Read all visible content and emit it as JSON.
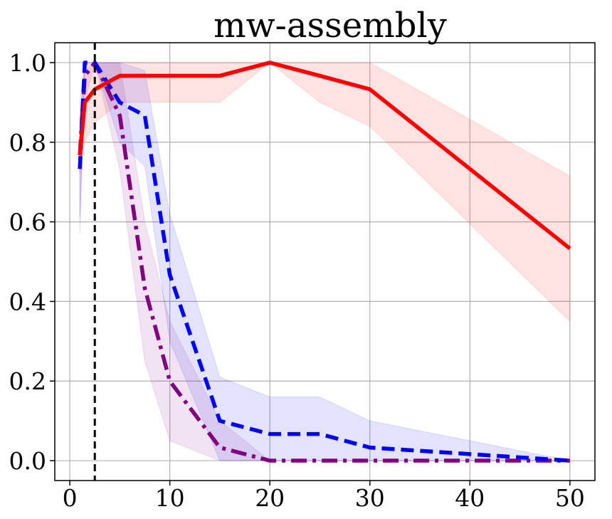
{
  "chart_data": {
    "type": "line",
    "title": "mw-assembly",
    "xlabel": "",
    "ylabel": "",
    "xlim": [
      -1.5,
      52.5
    ],
    "ylim": [
      -0.05,
      1.05
    ],
    "xticks": [
      0,
      10,
      20,
      30,
      40,
      50
    ],
    "yticks": [
      0.0,
      0.2,
      0.4,
      0.6,
      0.8,
      1.0
    ],
    "xtick_labels": [
      "0",
      "10",
      "20",
      "30",
      "40",
      "50"
    ],
    "ytick_labels": [
      "0.0",
      "0.2",
      "0.4",
      "0.6",
      "0.8",
      "1.0"
    ],
    "grid": true,
    "vline": {
      "x": 2.5,
      "style": "dashed",
      "color": "#000000"
    },
    "series": [
      {
        "color": "#ff0000",
        "style": "solid",
        "x": [
          1,
          1.5,
          2.5,
          5,
          7.5,
          10,
          15,
          20,
          25,
          30,
          50
        ],
        "values": [
          0.767,
          0.9,
          0.933,
          0.967,
          0.967,
          0.967,
          0.967,
          1.0,
          0.967,
          0.933,
          0.533
        ],
        "lower": [
          0.72,
          0.8,
          0.85,
          0.9,
          0.9,
          0.9,
          0.9,
          1.0,
          0.9,
          0.84,
          0.35
        ],
        "upper": [
          0.8,
          0.98,
          1.0,
          1.0,
          1.0,
          1.0,
          1.0,
          1.0,
          1.0,
          1.0,
          0.715
        ]
      },
      {
        "color": "#0000ff",
        "style": "dashed",
        "x": [
          1,
          1.5,
          2.5,
          5,
          7.5,
          10,
          15,
          20,
          25,
          30,
          50
        ],
        "values": [
          0.733,
          1.0,
          1.0,
          0.9,
          0.867,
          0.467,
          0.1,
          0.067,
          0.067,
          0.033,
          0.0
        ],
        "lower": [
          0.57,
          1.0,
          1.0,
          0.8,
          0.74,
          0.3,
          0.0,
          0.0,
          0.0,
          0.0,
          0.0
        ],
        "upper": [
          0.85,
          1.0,
          1.0,
          1.0,
          0.98,
          0.62,
          0.21,
          0.16,
          0.16,
          0.1,
          0.0
        ]
      },
      {
        "color": "#800080",
        "style": "dashdot",
        "x": [
          1,
          1.5,
          2.5,
          5,
          7.5,
          10,
          15,
          20,
          25,
          30,
          50
        ],
        "values": [
          0.767,
          0.967,
          1.0,
          0.867,
          0.433,
          0.2,
          0.033,
          0.0,
          0.0,
          0.0,
          0.0
        ],
        "lower": [
          0.61,
          0.9,
          1.0,
          0.73,
          0.25,
          0.05,
          0.0,
          0.0,
          0.0,
          0.0,
          0.0
        ],
        "upper": [
          0.9,
          1.0,
          1.0,
          1.0,
          0.6,
          0.35,
          0.1,
          0.0,
          0.0,
          0.0,
          0.0
        ]
      }
    ]
  }
}
